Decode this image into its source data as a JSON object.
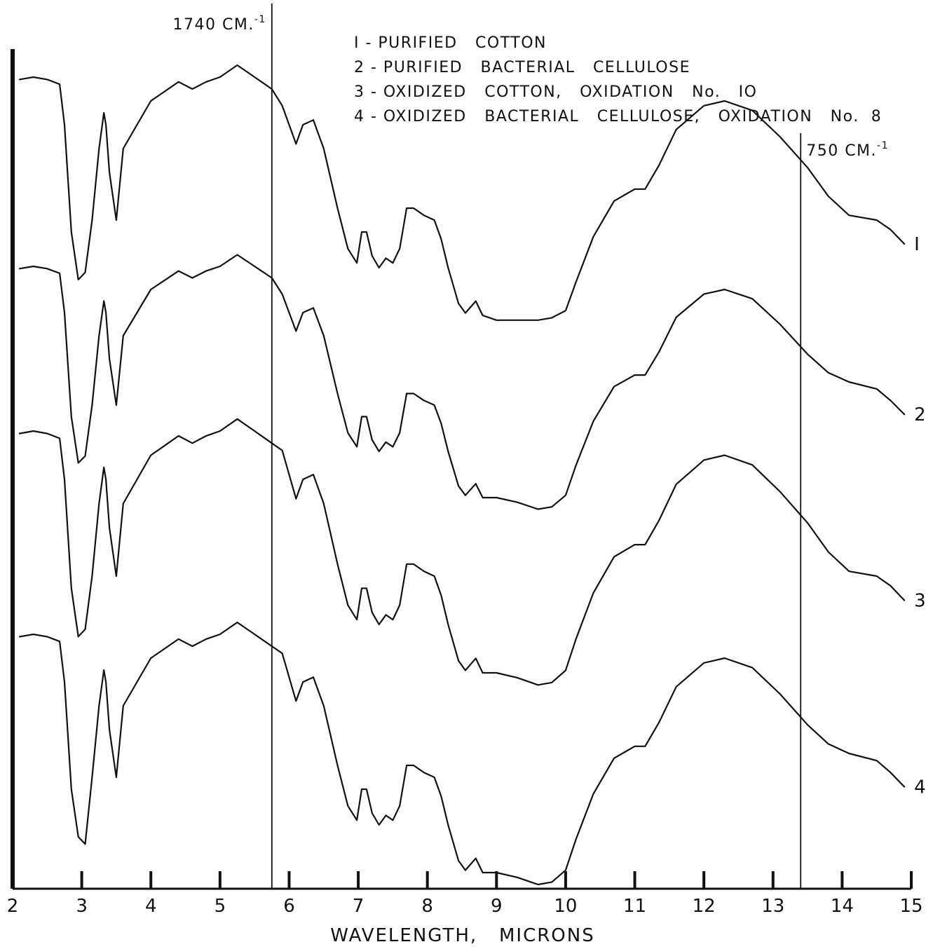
{
  "chart_data": {
    "type": "line",
    "xlabel": "WAVELENGTH,   MICRONS",
    "ylabel": "",
    "xlim": [
      2,
      15
    ],
    "x_ticks": [
      "2",
      "3",
      "4",
      "5",
      "6",
      "7",
      "8",
      "9",
      "10",
      "11",
      "12",
      "13",
      "14",
      "15"
    ],
    "grid": false,
    "legend_position": "top-right",
    "legend": [
      "I - PURIFIED   COTTON",
      "2 - PURIFIED   BACTERIAL   CELLULOSE",
      "3 - OXIDIZED   COTTON,   OXIDATION   No.   IO",
      "4 - OXIDIZED   BACTERIAL   CELLULOSE,   OXIDATION   No.  8"
    ],
    "reference_lines": [
      {
        "x": 5.75,
        "label": "1740   CM.",
        "superscript": "-1"
      },
      {
        "x": 13.4,
        "label": "750   CM.",
        "superscript": "-1"
      }
    ],
    "series": [
      {
        "name": "1",
        "x": [
          2.1,
          2.3,
          2.5,
          2.68,
          2.75,
          2.85,
          2.95,
          3.05,
          3.15,
          3.25,
          3.32,
          3.35,
          3.4,
          3.5,
          3.6,
          3.8,
          4,
          4.2,
          4.4,
          4.6,
          4.8,
          5,
          5.25,
          5.5,
          5.75,
          5.9,
          6.1,
          6.2,
          6.35,
          6.5,
          6.7,
          6.85,
          6.98,
          7.05,
          7.12,
          7.2,
          7.3,
          7.4,
          7.5,
          7.6,
          7.7,
          7.8,
          7.95,
          8.1,
          8.2,
          8.3,
          8.45,
          8.55,
          8.7,
          8.8,
          9,
          9.3,
          9.6,
          9.8,
          10,
          10.15,
          10.4,
          10.7,
          11,
          11.15,
          11.35,
          11.6,
          12,
          12.3,
          12.7,
          13.1,
          13.5,
          13.8,
          14.1,
          14.5,
          14.7,
          14.9
        ],
        "y": [
          0.01,
          0,
          0.01,
          0.03,
          0.2,
          0.65,
          0.85,
          0.82,
          0.6,
          0.3,
          0.15,
          0.2,
          0.4,
          0.6,
          0.3,
          0.2,
          0.1,
          0.06,
          0.02,
          0.05,
          0.02,
          0,
          -0.05,
          0,
          0.05,
          0.12,
          0.28,
          0.2,
          0.18,
          0.3,
          0.55,
          0.72,
          0.78,
          0.65,
          0.65,
          0.75,
          0.8,
          0.76,
          0.78,
          0.72,
          0.55,
          0.55,
          0.58,
          0.6,
          0.68,
          0.8,
          0.95,
          0.99,
          0.94,
          1.0,
          1.02,
          1.02,
          1.02,
          1.01,
          0.98,
          0.86,
          0.67,
          0.52,
          0.47,
          0.47,
          0.37,
          0.22,
          0.12,
          0.1,
          0.14,
          0.25,
          0.38,
          0.5,
          0.58,
          0.6,
          0.64,
          0.7
        ]
      },
      {
        "name": "2",
        "x": [
          2.1,
          2.3,
          2.5,
          2.68,
          2.75,
          2.85,
          2.95,
          3.05,
          3.15,
          3.25,
          3.32,
          3.35,
          3.4,
          3.5,
          3.6,
          3.8,
          4,
          4.2,
          4.4,
          4.6,
          4.8,
          5,
          5.25,
          5.5,
          5.75,
          5.9,
          6.1,
          6.2,
          6.35,
          6.5,
          6.7,
          6.85,
          6.98,
          7.05,
          7.12,
          7.2,
          7.3,
          7.4,
          7.5,
          7.6,
          7.7,
          7.8,
          7.95,
          8.1,
          8.2,
          8.3,
          8.45,
          8.55,
          8.7,
          8.8,
          9,
          9.3,
          9.6,
          9.8,
          10,
          10.15,
          10.4,
          10.7,
          11,
          11.15,
          11.35,
          11.6,
          12,
          12.3,
          12.7,
          13.1,
          13.5,
          13.8,
          14.1,
          14.5,
          14.7,
          14.9
        ],
        "y": [
          0.01,
          0,
          0.01,
          0.03,
          0.2,
          0.65,
          0.85,
          0.82,
          0.6,
          0.3,
          0.15,
          0.2,
          0.4,
          0.6,
          0.3,
          0.2,
          0.1,
          0.06,
          0.02,
          0.05,
          0.02,
          0,
          -0.05,
          0,
          0.05,
          0.12,
          0.28,
          0.2,
          0.18,
          0.3,
          0.55,
          0.72,
          0.78,
          0.65,
          0.65,
          0.75,
          0.8,
          0.76,
          0.78,
          0.72,
          0.55,
          0.55,
          0.58,
          0.6,
          0.68,
          0.8,
          0.95,
          0.99,
          0.94,
          1.0,
          1.0,
          1.02,
          1.05,
          1.04,
          0.99,
          0.86,
          0.67,
          0.52,
          0.47,
          0.47,
          0.37,
          0.22,
          0.12,
          0.1,
          0.14,
          0.25,
          0.38,
          0.46,
          0.5,
          0.53,
          0.58,
          0.64
        ]
      },
      {
        "name": "3",
        "x": [
          2.1,
          2.3,
          2.5,
          2.68,
          2.75,
          2.85,
          2.95,
          3.05,
          3.15,
          3.25,
          3.32,
          3.35,
          3.4,
          3.5,
          3.6,
          3.8,
          4,
          4.2,
          4.4,
          4.6,
          4.8,
          5,
          5.25,
          5.5,
          5.75,
          5.9,
          6.1,
          6.2,
          6.35,
          6.5,
          6.7,
          6.85,
          6.98,
          7.05,
          7.12,
          7.2,
          7.3,
          7.4,
          7.5,
          7.6,
          7.7,
          7.8,
          7.95,
          8.1,
          8.2,
          8.3,
          8.45,
          8.55,
          8.7,
          8.8,
          9,
          9.3,
          9.6,
          9.8,
          10,
          10.15,
          10.4,
          10.7,
          11,
          11.15,
          11.35,
          11.6,
          12,
          12.3,
          12.7,
          13.1,
          13.5,
          13.8,
          14.1,
          14.5,
          14.7,
          14.9
        ],
        "y": [
          0.01,
          0,
          0.01,
          0.03,
          0.2,
          0.65,
          0.85,
          0.82,
          0.6,
          0.3,
          0.15,
          0.2,
          0.4,
          0.6,
          0.3,
          0.2,
          0.1,
          0.06,
          0.02,
          0.05,
          0.02,
          0,
          -0.05,
          0,
          0.05,
          0.08,
          0.28,
          0.2,
          0.18,
          0.3,
          0.55,
          0.72,
          0.78,
          0.65,
          0.65,
          0.75,
          0.8,
          0.76,
          0.78,
          0.72,
          0.55,
          0.55,
          0.58,
          0.6,
          0.68,
          0.8,
          0.95,
          0.99,
          0.94,
          1.0,
          1.0,
          1.02,
          1.05,
          1.04,
          0.99,
          0.86,
          0.67,
          0.52,
          0.47,
          0.47,
          0.37,
          0.22,
          0.12,
          0.1,
          0.14,
          0.25,
          0.38,
          0.5,
          0.58,
          0.6,
          0.64,
          0.7
        ]
      },
      {
        "name": "4",
        "x": [
          2.1,
          2.3,
          2.5,
          2.68,
          2.75,
          2.85,
          2.95,
          3.05,
          3.15,
          3.25,
          3.32,
          3.35,
          3.4,
          3.5,
          3.6,
          3.8,
          4,
          4.2,
          4.4,
          4.6,
          4.8,
          5,
          5.25,
          5.5,
          5.75,
          5.9,
          6.1,
          6.2,
          6.35,
          6.5,
          6.7,
          6.85,
          6.98,
          7.05,
          7.12,
          7.2,
          7.3,
          7.4,
          7.5,
          7.6,
          7.7,
          7.8,
          7.95,
          8.1,
          8.2,
          8.3,
          8.45,
          8.55,
          8.7,
          8.8,
          9,
          9.3,
          9.6,
          9.8,
          10,
          10.15,
          10.4,
          10.7,
          11,
          11.15,
          11.35,
          11.6,
          12,
          12.3,
          12.7,
          13.1,
          13.5,
          13.8,
          14.1,
          14.5,
          14.7,
          14.9
        ],
        "y": [
          0.01,
          0,
          0.01,
          0.03,
          0.2,
          0.65,
          0.85,
          0.88,
          0.6,
          0.3,
          0.15,
          0.2,
          0.4,
          0.6,
          0.3,
          0.2,
          0.1,
          0.06,
          0.02,
          0.05,
          0.02,
          0,
          -0.05,
          0,
          0.05,
          0.08,
          0.28,
          0.2,
          0.18,
          0.3,
          0.55,
          0.72,
          0.78,
          0.65,
          0.65,
          0.75,
          0.8,
          0.76,
          0.78,
          0.72,
          0.55,
          0.55,
          0.58,
          0.6,
          0.68,
          0.8,
          0.95,
          0.99,
          0.94,
          1.0,
          1.0,
          1.02,
          1.05,
          1.04,
          0.99,
          0.86,
          0.67,
          0.52,
          0.47,
          0.47,
          0.37,
          0.22,
          0.12,
          0.1,
          0.14,
          0.25,
          0.38,
          0.46,
          0.5,
          0.53,
          0.58,
          0.64
        ]
      }
    ]
  }
}
